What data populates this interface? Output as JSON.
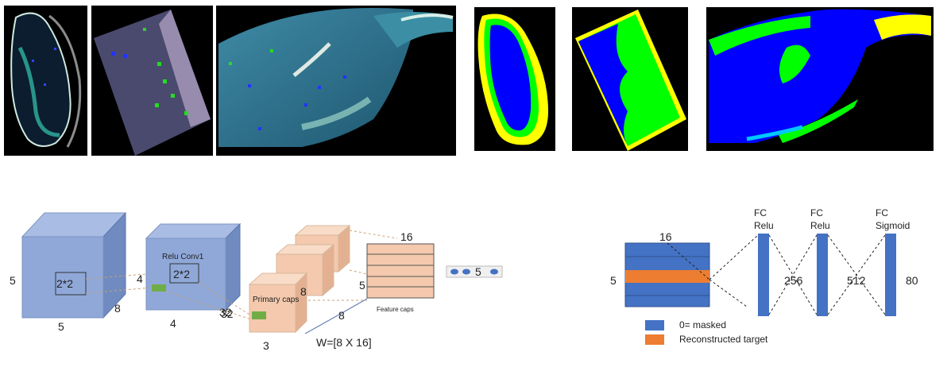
{
  "colors": {
    "cube_front": "#8fa8d8",
    "cube_top": "#a9bde4",
    "cube_side": "#6f8bbf",
    "caps_front": "#f4c9ad",
    "caps_top": "#f8dcc8",
    "caps_side": "#e3b192",
    "blue_bar": "#4472c4",
    "orange_bar": "#ed7d31",
    "green_patch": "#70ad47",
    "map_blue": "#0000ff",
    "map_green": "#00ff00",
    "map_yellow": "#ffff00",
    "map_cyan": "#00c8ff",
    "sat_water": "#2e6b8a"
  },
  "images": {
    "sat1": {
      "name": "satellite-image-1",
      "kind": "satellite"
    },
    "sat2": {
      "name": "satellite-image-2",
      "kind": "satellite"
    },
    "sat3": {
      "name": "satellite-image-3",
      "kind": "satellite"
    },
    "map1": {
      "name": "classification-map-1",
      "kind": "classified"
    },
    "map2": {
      "name": "classification-map-2",
      "kind": "classified"
    },
    "map3": {
      "name": "classification-map-3",
      "kind": "classified"
    }
  },
  "capsule_net": {
    "input_cube": {
      "height_label": "5",
      "width_label": "5",
      "depth_label": "8",
      "kernel_label": "2*2"
    },
    "conv1_cube": {
      "title": "Relu Conv1",
      "height_label": "4",
      "width_label": "4",
      "depth_label": "32",
      "kernel_label": "2*2"
    },
    "primary_caps": {
      "title": "Primary caps",
      "dim_label": "8",
      "width_label": "3"
    },
    "feature_caps": {
      "title": "Feature caps",
      "top_label": "16",
      "side_label": "5",
      "depth_label": "8"
    },
    "weight_label": "W=[8 X 16]",
    "output_vector": {
      "label": "5"
    }
  },
  "decoder": {
    "matrix": {
      "top_label": "16",
      "side_label": "5"
    },
    "layers": [
      {
        "line1": "FC",
        "line2": "Relu",
        "size": "256"
      },
      {
        "line1": "FC",
        "line2": "Relu",
        "size": "512"
      },
      {
        "line1": "FC",
        "line2": "Sigmoid",
        "size": "80"
      }
    ],
    "legend": [
      {
        "label": "0= masked",
        "color_key": "blue_bar"
      },
      {
        "label": "Reconstructed target",
        "color_key": "orange_bar"
      }
    ]
  }
}
